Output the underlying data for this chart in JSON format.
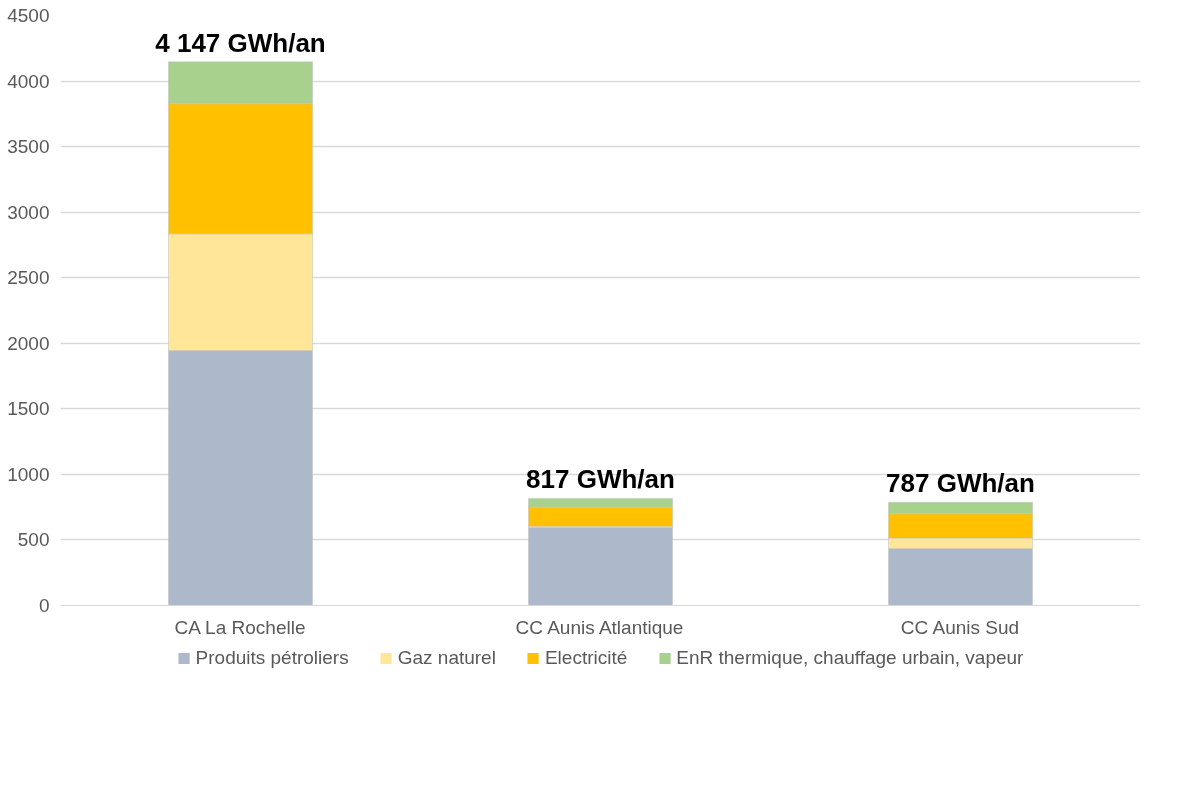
{
  "chart_data": {
    "type": "bar",
    "stacked": true,
    "categories": [
      "CA La Rochelle",
      "CC Aunis Atlantique",
      "CC Aunis Sud"
    ],
    "series": [
      {
        "name": "Produits pétroliers",
        "color": "#adb9ca",
        "values": [
          1945,
          595,
          435
        ]
      },
      {
        "name": "Gaz naturel",
        "color": "#ffe699",
        "values": [
          890,
          10,
          80
        ]
      },
      {
        "name": "Electricité",
        "color": "#ffc000",
        "values": [
          992,
          145,
          185
        ]
      },
      {
        "name": "EnR thermique, chauffage urbain, vapeur",
        "color": "#a9d18e",
        "values": [
          320,
          67,
          87
        ]
      }
    ],
    "totals": [
      "4 147 GWh/an",
      "817 GWh/an",
      "787 GWh/an"
    ],
    "ylim": [
      0,
      4500
    ],
    "yticks": [
      0,
      500,
      1000,
      1500,
      2000,
      2500,
      3000,
      3500,
      4000,
      4500
    ],
    "grid": "y",
    "legend": "bottom"
  }
}
